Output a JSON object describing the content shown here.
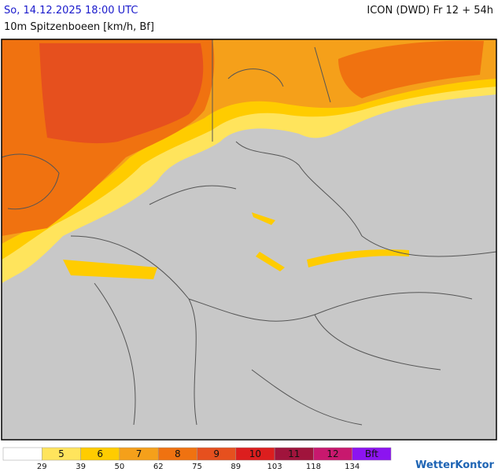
{
  "header": {
    "datetime": "So, 14.12.2025 18:00 UTC",
    "model": "ICON (DWD) Fr 12 + 54h",
    "parameter": "10m Spitzenboeen [km/h, Bf]"
  },
  "legend": {
    "entries": [
      {
        "label": null,
        "color": "#ffffff"
      },
      {
        "label": "5",
        "color": "#ffe45c"
      },
      {
        "label": "6",
        "color": "#ffcc00"
      },
      {
        "label": "7",
        "color": "#f5a01a"
      },
      {
        "label": "8",
        "color": "#f07210"
      },
      {
        "label": "9",
        "color": "#e6501e"
      },
      {
        "label": "10",
        "color": "#dc1e1e"
      },
      {
        "label": "11",
        "color": "#a0143c"
      },
      {
        "label": "12",
        "color": "#c8186e"
      },
      {
        "label": "Bft",
        "color": "#8c14f0"
      }
    ],
    "thresholds": [
      29,
      39,
      50,
      62,
      75,
      89,
      103,
      118,
      134
    ]
  },
  "brand": "WetterKontor"
}
